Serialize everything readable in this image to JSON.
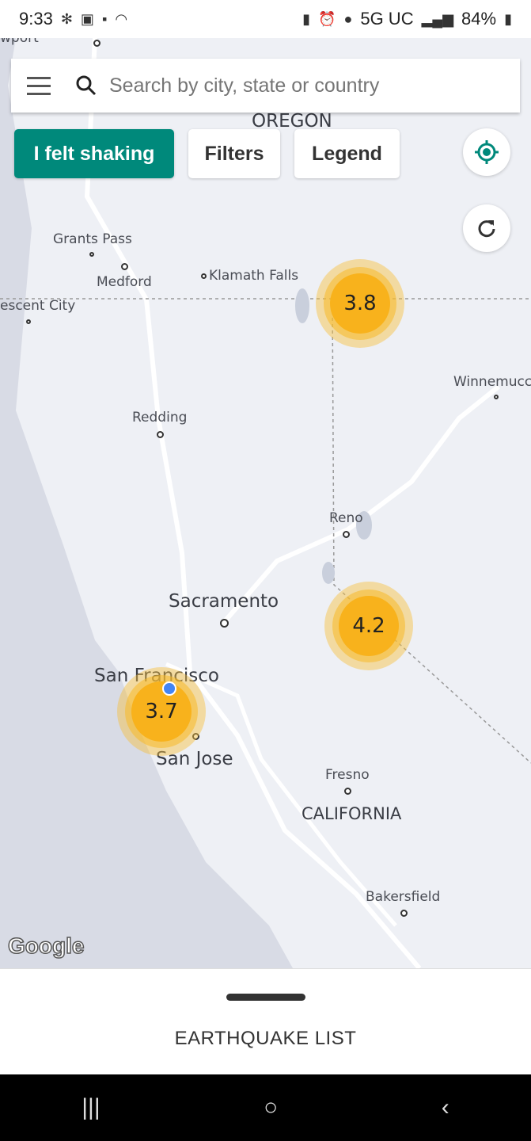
{
  "status_bar": {
    "time": "9:33",
    "network": "5G UC",
    "battery": "84%",
    "left_icons": [
      "slack-icon",
      "calendar-icon",
      "notification-icon",
      "wifi-icon"
    ],
    "right_icons": [
      "battery-saver-icon",
      "alarm-icon",
      "location-icon",
      "signal-icon",
      "battery-icon"
    ]
  },
  "search": {
    "placeholder": "Search by city, state or country"
  },
  "buttons": {
    "felt_shaking": "I felt shaking",
    "filters": "Filters",
    "legend": "Legend"
  },
  "colors": {
    "primary": "#00897b",
    "quake": "#f8b21c",
    "user_location": "#4285f4"
  },
  "map": {
    "labels": {
      "oregon": "OREGON",
      "california": "CALIFORNIA",
      "newport": "wport",
      "grants_pass": "Grants Pass",
      "medford": "Medford",
      "klamath_falls": "Klamath Falls",
      "crescent_city": "escent City",
      "redding": "Redding",
      "winnemucca": "Winnemucca",
      "reno": "Reno",
      "sacramento": "Sacramento",
      "san_francisco": "San Francisco",
      "san_jose": "San Jose",
      "fresno": "Fresno",
      "bakersfield": "Bakersfield"
    },
    "quakes": [
      {
        "magnitude": "3.8"
      },
      {
        "magnitude": "4.2"
      },
      {
        "magnitude": "3.7"
      }
    ],
    "attribution": "Google"
  },
  "sheet": {
    "title": "EARTHQUAKE LIST"
  },
  "nav": {
    "recents": "|||",
    "home": "○",
    "back": "‹"
  }
}
